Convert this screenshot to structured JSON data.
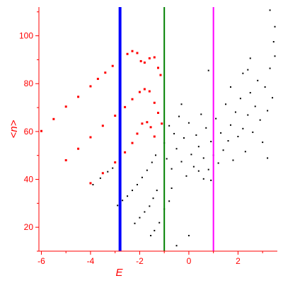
{
  "chart_data": {
    "type": "scatter",
    "title": "",
    "xlabel": "E",
    "ylabel": "<n>",
    "xlim": [
      -6.1,
      3.6
    ],
    "ylim": [
      10,
      112
    ],
    "x_ticks": [
      -6,
      -4,
      -2,
      0,
      2
    ],
    "y_ticks": [
      20,
      40,
      60,
      80,
      100
    ],
    "grid": false,
    "legend": "none",
    "colors": {
      "axes": "#ff0000",
      "points": "#000000",
      "red_points": "#ff0000",
      "vline_blue": "#0000ff",
      "vline_green": "#008000",
      "vline_magenta": "#ff00ff"
    },
    "vertical_lines": [
      {
        "x": -2.8,
        "color": "#0000ff"
      },
      {
        "x": -1.0,
        "color": "#008000"
      },
      {
        "x": 1.0,
        "color": "#ff00ff"
      }
    ],
    "series": [
      {
        "color": "#ff0000",
        "points": [
          [
            -6.0,
            60.2
          ],
          [
            -5.5,
            65.2
          ],
          [
            -5.0,
            70.4
          ],
          [
            -4.5,
            74.5
          ],
          [
            -4.0,
            78.9
          ],
          [
            -3.7,
            82.0
          ],
          [
            -3.4,
            84.6
          ],
          [
            -3.1,
            87.4
          ],
          [
            -2.8,
            90.0
          ],
          [
            -2.5,
            92.4
          ],
          [
            -2.3,
            93.6
          ],
          [
            -2.1,
            92.8
          ],
          [
            -1.95,
            89.4
          ],
          [
            -1.8,
            88.8
          ],
          [
            -1.6,
            90.6
          ],
          [
            -1.4,
            91.0
          ],
          [
            -1.25,
            86.6
          ],
          [
            -1.15,
            83.6
          ]
        ]
      },
      {
        "color": "#ff0000",
        "points": [
          [
            -5.0,
            48.0
          ],
          [
            -4.5,
            52.8
          ],
          [
            -4.0,
            57.6
          ],
          [
            -3.5,
            62.4
          ],
          [
            -3.0,
            66.6
          ],
          [
            -2.6,
            70.2
          ],
          [
            -2.3,
            73.5
          ],
          [
            -2.0,
            76.5
          ],
          [
            -1.8,
            77.7
          ],
          [
            -1.6,
            76.8
          ],
          [
            -1.4,
            72.0
          ],
          [
            -1.25,
            67.8
          ],
          [
            -1.1,
            63.3
          ]
        ]
      },
      {
        "color": "#ff0000",
        "points": [
          [
            -4.0,
            38.4
          ],
          [
            -3.5,
            42.6
          ],
          [
            -3.0,
            47.1
          ],
          [
            -2.6,
            51.3
          ],
          [
            -2.3,
            55.2
          ],
          [
            -2.1,
            59.1
          ],
          [
            -1.9,
            63.3
          ],
          [
            -1.7,
            63.9
          ],
          [
            -1.55,
            61.8
          ],
          [
            -1.4,
            57.9
          ]
        ]
      },
      {
        "color": "#000000",
        "points": [
          [
            -3.9,
            37.8
          ],
          [
            -3.6,
            40.5
          ],
          [
            -3.3,
            43.2
          ],
          [
            -3.1,
            44.7
          ],
          [
            -2.9,
            29.1
          ],
          [
            -2.8,
            30.0
          ],
          [
            -2.7,
            31.2
          ],
          [
            -2.5,
            33.0
          ],
          [
            -2.3,
            35.4
          ],
          [
            -2.1,
            37.8
          ],
          [
            -1.9,
            40.8
          ],
          [
            -1.7,
            43.8
          ],
          [
            -1.5,
            47.1
          ],
          [
            -1.35,
            50.1
          ],
          [
            -2.2,
            21.6
          ],
          [
            -2.0,
            24.0
          ],
          [
            -1.8,
            26.4
          ],
          [
            -1.6,
            28.8
          ],
          [
            -1.45,
            32.1
          ],
          [
            -1.3,
            35.4
          ],
          [
            -1.55,
            16.5
          ],
          [
            -1.4,
            18.6
          ],
          [
            -1.2,
            21.9
          ],
          [
            -1.0,
            27.6
          ],
          [
            -0.8,
            30.9
          ],
          [
            -0.5,
            12.3
          ],
          [
            0.0,
            16.5
          ],
          [
            -1.0,
            55.2
          ],
          [
            -0.9,
            48.6
          ],
          [
            -0.8,
            62.4
          ],
          [
            -0.7,
            44.4
          ],
          [
            -0.6,
            59.1
          ],
          [
            -0.5,
            52.8
          ],
          [
            -0.4,
            66.3
          ],
          [
            -0.3,
            47.4
          ],
          [
            -0.2,
            57.3
          ],
          [
            -0.1,
            41.4
          ],
          [
            0.0,
            63.6
          ],
          [
            0.1,
            50.4
          ],
          [
            0.2,
            45.3
          ],
          [
            0.3,
            58.5
          ],
          [
            0.4,
            53.7
          ],
          [
            0.5,
            67.2
          ],
          [
            0.6,
            48.9
          ],
          [
            0.7,
            61.5
          ],
          [
            0.8,
            44.1
          ],
          [
            0.9,
            55.8
          ],
          [
            1.0,
            50.1
          ],
          [
            1.1,
            65.4
          ],
          [
            1.2,
            46.8
          ],
          [
            1.3,
            59.4
          ],
          [
            1.4,
            52.2
          ],
          [
            1.5,
            71.4
          ],
          [
            1.6,
            56.1
          ],
          [
            1.7,
            62.7
          ],
          [
            1.8,
            48.0
          ],
          [
            1.9,
            68.1
          ],
          [
            2.0,
            57.9
          ],
          [
            2.1,
            73.8
          ],
          [
            2.2,
            61.2
          ],
          [
            2.3,
            51.6
          ],
          [
            2.4,
            66.9
          ],
          [
            2.5,
            76.2
          ],
          [
            2.6,
            59.7
          ],
          [
            2.7,
            70.5
          ],
          [
            2.8,
            81.3
          ],
          [
            2.9,
            64.8
          ],
          [
            3.0,
            55.5
          ],
          [
            3.1,
            78.6
          ],
          [
            3.2,
            68.7
          ],
          [
            3.3,
            86.4
          ],
          [
            3.4,
            74.1
          ],
          [
            3.5,
            91.5
          ],
          [
            3.3,
            110.7
          ],
          [
            3.5,
            103.8
          ],
          [
            3.45,
            97.5
          ],
          [
            2.5,
            90.6
          ],
          [
            2.4,
            85.8
          ],
          [
            0.8,
            85.5
          ],
          [
            0.4,
            43.5
          ],
          [
            -0.3,
            71.4
          ],
          [
            0.6,
            40.2
          ],
          [
            1.7,
            78.6
          ],
          [
            2.2,
            84.3
          ],
          [
            3.2,
            48.9
          ],
          [
            -0.7,
            36.3
          ],
          [
            0.9,
            39.6
          ]
        ]
      }
    ]
  }
}
